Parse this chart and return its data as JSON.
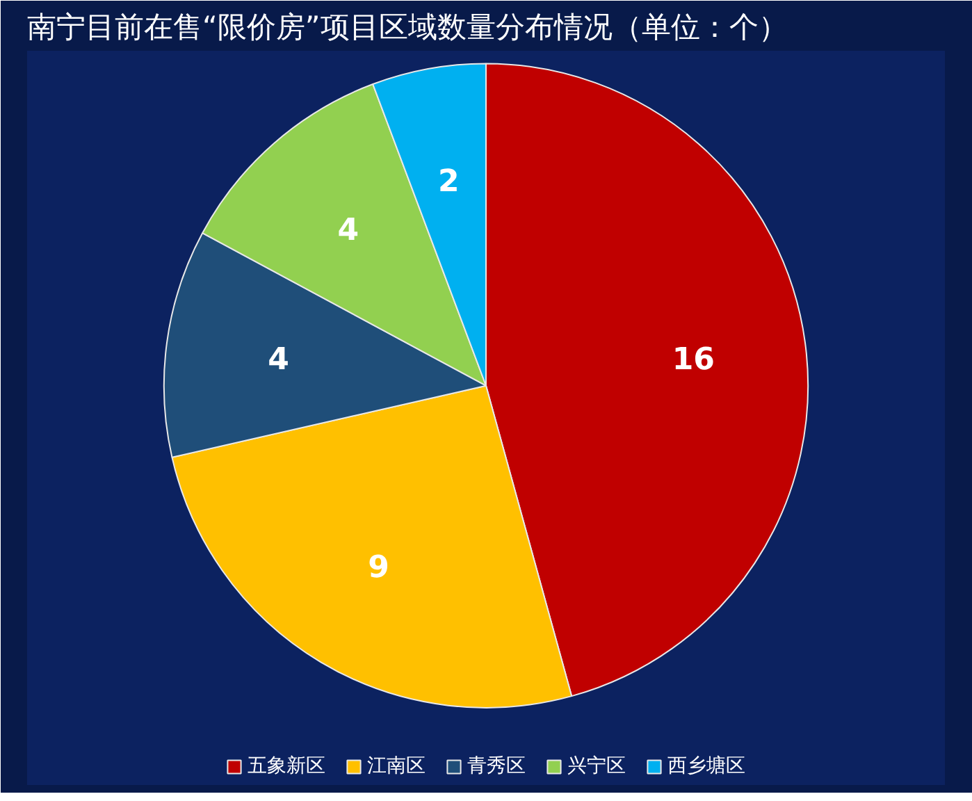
{
  "chart_data": {
    "type": "pie",
    "title": "南宁目前在售“限价房”项目区域数量分布情况（单位：个）",
    "categories": [
      "五象新区",
      "江南区",
      "青秀区",
      "兴宁区",
      "西乡塘区"
    ],
    "values": [
      16,
      9,
      4,
      4,
      2
    ],
    "colors": [
      "#c00000",
      "#ffc000",
      "#1f4e79",
      "#92d050",
      "#00b0f0"
    ],
    "data_labels": true,
    "legend": "bottom"
  }
}
